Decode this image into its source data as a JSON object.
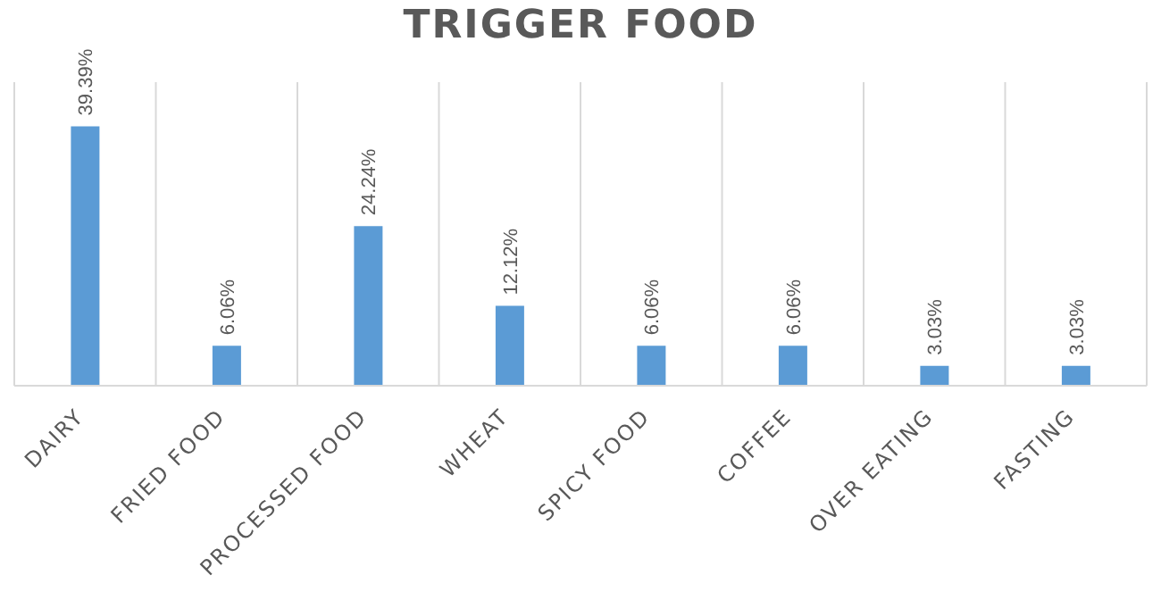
{
  "chart_data": {
    "type": "bar",
    "title": "TRIGGER FOOD",
    "categories": [
      "DAIRY",
      "FRIED FOOD",
      "PROCESSED FOOD",
      "WHEAT",
      "SPICY FOOD",
      "COFFEE",
      "OVER EATING",
      "FASTING"
    ],
    "values": [
      39.39,
      6.06,
      24.24,
      12.12,
      6.06,
      6.06,
      3.03,
      3.03
    ],
    "value_labels": [
      "39.39%",
      "6.06%",
      "24.24%",
      "12.12%",
      "6.06%",
      "6.06%",
      "3.03%",
      "3.03%"
    ],
    "color": "#5b9bd5",
    "grid": "x",
    "tick_labels": "x"
  }
}
